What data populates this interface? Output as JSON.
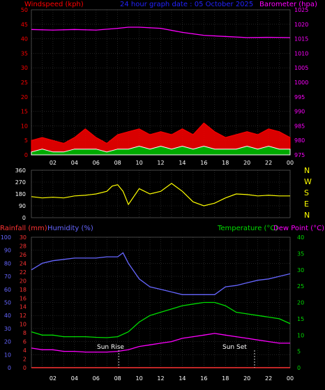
{
  "header": {
    "windspeed_label": "Windspeed (kph)",
    "title": "24 hour graph date : 05 October 2025",
    "barometer_label": "Barometer (hpa)"
  },
  "colors": {
    "background": "#000000",
    "grid": "#3a3a3a",
    "axis_left_top": "#ff0000",
    "axis_right_top": "#ff00ff",
    "title": "#2222ff",
    "gust": "#ff0000",
    "avg_wind": "#ffffff",
    "wind_fill": "#00aa00",
    "barometer": "#ff00ff",
    "direction": "#ffff00",
    "rainfall": "#ff3333",
    "humidity": "#6666ff",
    "temperature": "#00dd00",
    "dewpoint": "#ff00ff",
    "tick_text": "#ffffff",
    "compass": "#ffff00"
  },
  "compass": [
    "N",
    "W",
    "S",
    "E",
    "N"
  ],
  "bottom_header": {
    "rainfall_label": "Rainfall (mm)",
    "humidity_label": "Humidity (%)",
    "temperature_label": "Temperature (°C)",
    "dewpoint_label": "Dew Point (°C)"
  },
  "annotations": {
    "sunrise": "Sun Rise",
    "sunset": "Sun Set"
  },
  "chart_data": [
    {
      "type": "line",
      "name": "wind-barometer",
      "x_tick_labels": [
        "02",
        "04",
        "06",
        "08",
        "10",
        "12",
        "14",
        "16",
        "18",
        "20",
        "22",
        "00"
      ],
      "xlim": [
        0,
        24
      ],
      "ylim_left": [
        0,
        50
      ],
      "ylim_right": [
        975,
        1025
      ],
      "left_ticks": [
        0,
        5,
        10,
        15,
        20,
        25,
        30,
        35,
        40,
        45,
        50
      ],
      "right_ticks": [
        975,
        980,
        985,
        990,
        995,
        1000,
        1005,
        1010,
        1015,
        1020,
        1025
      ],
      "grid": true,
      "series": [
        {
          "name": "Barometer (hpa)",
          "axis": "right",
          "x": [
            0,
            2,
            4,
            6,
            8,
            9,
            10,
            12,
            14,
            16,
            18,
            20,
            22,
            24
          ],
          "y": [
            1018.2,
            1018.0,
            1018.2,
            1018.0,
            1018.6,
            1019.0,
            1019.0,
            1018.6,
            1017.2,
            1016.2,
            1015.8,
            1015.4,
            1015.5,
            1015.4
          ]
        },
        {
          "name": "Gust",
          "axis": "left",
          "x": [
            0,
            1,
            2,
            3,
            4,
            5,
            6,
            7,
            8,
            9,
            10,
            11,
            12,
            13,
            14,
            15,
            16,
            17,
            18,
            19,
            20,
            21,
            22,
            23,
            24
          ],
          "y": [
            5,
            6,
            5,
            4,
            6,
            9,
            6,
            4,
            7,
            8,
            9,
            7,
            8,
            7,
            9,
            7,
            11,
            8,
            6,
            7,
            8,
            7,
            9,
            8,
            6
          ]
        },
        {
          "name": "Average",
          "axis": "left",
          "x": [
            0,
            1,
            2,
            3,
            4,
            5,
            6,
            7,
            8,
            9,
            10,
            11,
            12,
            13,
            14,
            15,
            16,
            17,
            18,
            19,
            20,
            21,
            22,
            23,
            24
          ],
          "y": [
            1,
            2,
            1,
            1,
            2,
            2,
            2,
            1,
            2,
            2,
            3,
            2,
            3,
            2,
            3,
            2,
            3,
            2,
            2,
            2,
            3,
            2,
            3,
            2,
            2
          ]
        }
      ]
    },
    {
      "type": "line",
      "name": "wind-direction",
      "xlim": [
        0,
        24
      ],
      "ylim": [
        0,
        360
      ],
      "left_ticks": [
        0,
        90,
        180,
        270,
        360
      ],
      "grid": true,
      "series": [
        {
          "name": "Direction",
          "x": [
            0,
            1,
            2,
            3,
            4,
            5,
            6,
            7,
            7.5,
            8,
            8.5,
            9,
            10,
            11,
            12,
            13,
            14,
            15,
            16,
            17,
            18,
            19,
            20,
            21,
            22,
            23,
            24
          ],
          "y": [
            160,
            150,
            155,
            150,
            165,
            170,
            180,
            200,
            240,
            250,
            200,
            100,
            220,
            180,
            200,
            260,
            200,
            120,
            90,
            110,
            150,
            180,
            175,
            165,
            170,
            165,
            165
          ]
        }
      ]
    },
    {
      "type": "line",
      "name": "temperature-humidity",
      "xlim": [
        0,
        24
      ],
      "ylim_left_humidity": [
        0,
        100
      ],
      "ylim_left_rain": [
        0,
        30
      ],
      "ylim_right": [
        0,
        40
      ],
      "humidity_ticks": [
        0,
        10,
        20,
        30,
        40,
        50,
        60,
        70,
        80,
        90,
        100
      ],
      "rain_ticks": [
        0,
        2,
        4,
        6,
        8,
        10,
        12,
        14,
        16,
        18,
        20,
        22,
        24,
        26,
        28,
        30
      ],
      "right_ticks": [
        0,
        5,
        10,
        15,
        20,
        25,
        30,
        35,
        40
      ],
      "grid": true,
      "series": [
        {
          "name": "Humidity (%)",
          "axis": "humidity",
          "x": [
            0,
            1,
            2,
            3,
            4,
            5,
            6,
            7,
            8,
            8.5,
            9,
            10,
            11,
            12,
            13,
            14,
            15,
            16,
            17,
            18,
            19,
            20,
            21,
            22,
            23,
            24
          ],
          "y": [
            75,
            80,
            82,
            83,
            84,
            84,
            84,
            85,
            85,
            88,
            80,
            68,
            62,
            60,
            58,
            56,
            56,
            56,
            56,
            62,
            63,
            65,
            67,
            68,
            70,
            72
          ]
        },
        {
          "name": "Temperature (°C)",
          "axis": "right",
          "x": [
            0,
            1,
            2,
            3,
            4,
            5,
            6,
            7,
            8,
            9,
            10,
            11,
            12,
            13,
            14,
            15,
            16,
            17,
            18,
            19,
            20,
            21,
            22,
            23,
            24
          ],
          "y": [
            11,
            10,
            10,
            9.5,
            9.5,
            9.5,
            9.3,
            9.2,
            9.5,
            11,
            14,
            16,
            17,
            18,
            19,
            19.5,
            20,
            20,
            19,
            17,
            16.5,
            16,
            15.5,
            15,
            13.5
          ]
        },
        {
          "name": "Dew Point (°C)",
          "axis": "right",
          "x": [
            0,
            1,
            2,
            3,
            4,
            5,
            6,
            7,
            8,
            9,
            10,
            11,
            12,
            13,
            14,
            15,
            16,
            17,
            18,
            19,
            20,
            21,
            22,
            23,
            24
          ],
          "y": [
            6,
            5.5,
            5.5,
            5,
            5,
            4.8,
            4.8,
            4.8,
            5,
            5.5,
            6.5,
            7,
            7.5,
            8,
            9,
            9.5,
            10,
            10.5,
            10,
            9.5,
            9,
            8.5,
            8,
            7.5,
            7.5
          ]
        },
        {
          "name": "Rainfall (mm)",
          "axis": "rain",
          "x": [
            0,
            24
          ],
          "y": [
            0,
            0
          ]
        }
      ],
      "sunrise_hour": 8.1,
      "sunset_hour": 20.7
    }
  ]
}
